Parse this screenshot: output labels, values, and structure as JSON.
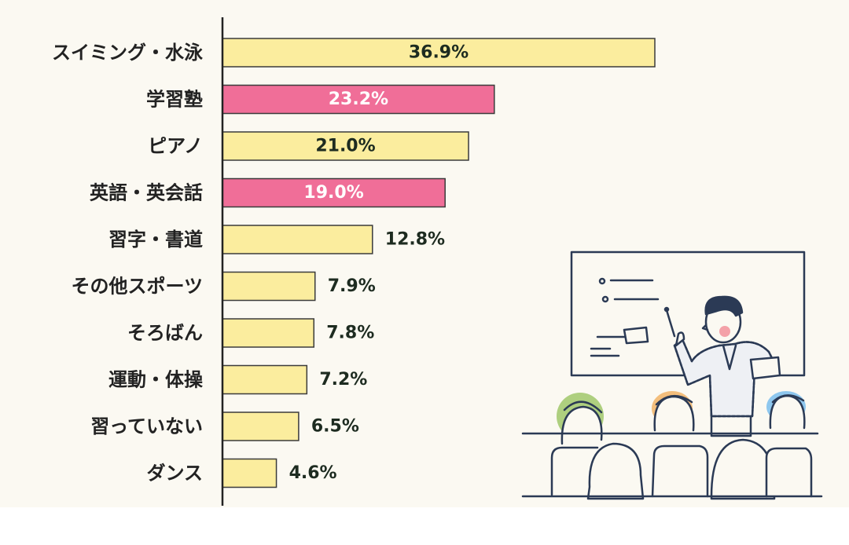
{
  "chart_data": {
    "type": "bar",
    "orientation": "horizontal",
    "title": "",
    "xlabel": "",
    "ylabel": "",
    "xlim": [
      0,
      40
    ],
    "grid": false,
    "legend": "none",
    "categories": [
      "スイミング・水泳",
      "学習塾",
      "ピアノ",
      "英語・英会話",
      "習字・書道",
      "その他スポーツ",
      "そろばん",
      "運動・体操",
      "習っていない",
      "ダンス"
    ],
    "values": [
      36.9,
      23.2,
      21.0,
      19.0,
      12.8,
      7.9,
      7.8,
      7.2,
      6.5,
      4.6
    ],
    "value_labels": [
      "36.9%",
      "23.2%",
      "21.0%",
      "19.0%",
      "12.8%",
      "7.9%",
      "7.8%",
      "7.2%",
      "6.5%",
      "4.6%"
    ],
    "highlight": [
      false,
      true,
      false,
      true,
      false,
      false,
      false,
      false,
      false,
      false
    ]
  },
  "colors": {
    "background": "#fbf9f2",
    "bar_default": "#fbed9e",
    "bar_highlight": "#f06e98",
    "outline": "#2b3a55",
    "label_dark": "#1d2b20",
    "label_light": "#ffffff",
    "category_text": "#222222"
  },
  "illustration": {
    "icon": "classroom-teacher-illustration"
  }
}
